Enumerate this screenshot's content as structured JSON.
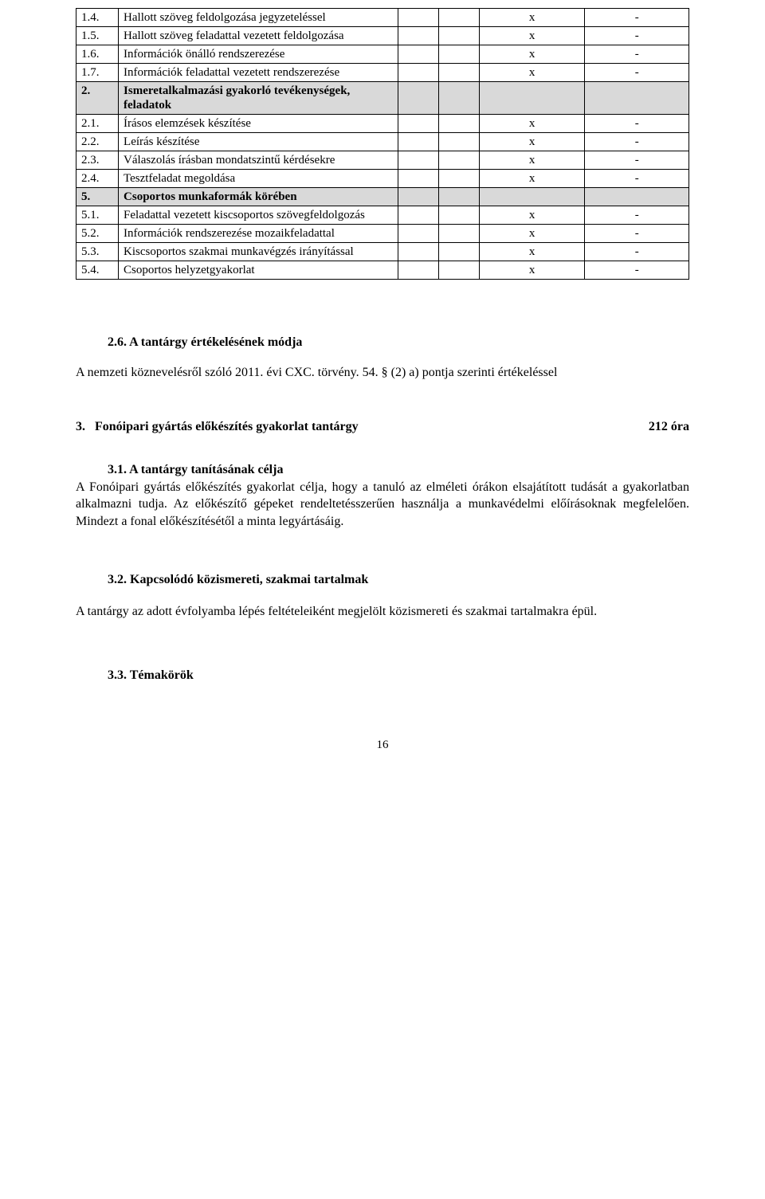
{
  "table": {
    "rows": [
      {
        "num": "1.4.",
        "desc": "Hallott szöveg feldolgozása jegyzeteléssel",
        "a": "",
        "b": "",
        "c": "x",
        "d": "-",
        "shaded": false,
        "bold": false
      },
      {
        "num": "1.5.",
        "desc": "Hallott szöveg feladattal vezetett feldolgozása",
        "a": "",
        "b": "",
        "c": "x",
        "d": "-",
        "shaded": false,
        "bold": false
      },
      {
        "num": "1.6.",
        "desc": "Információk önálló rendszerezése",
        "a": "",
        "b": "",
        "c": "x",
        "d": "-",
        "shaded": false,
        "bold": false
      },
      {
        "num": "1.7.",
        "desc": "Információk feladattal vezetett rendszerezése",
        "a": "",
        "b": "",
        "c": "x",
        "d": "-",
        "shaded": false,
        "bold": false
      },
      {
        "num": "2.",
        "desc": "Ismeretalkalmazási gyakorló tevékenységek, feladatok",
        "a": "",
        "b": "",
        "c": "",
        "d": "",
        "shaded": true,
        "bold": true
      },
      {
        "num": "2.1.",
        "desc": "Írásos elemzések készítése",
        "a": "",
        "b": "",
        "c": "x",
        "d": "-",
        "shaded": false,
        "bold": false
      },
      {
        "num": "2.2.",
        "desc": "Leírás készítése",
        "a": "",
        "b": "",
        "c": "x",
        "d": "-",
        "shaded": false,
        "bold": false
      },
      {
        "num": "2.3.",
        "desc": "Válaszolás írásban mondatszintű kérdésekre",
        "a": "",
        "b": "",
        "c": "x",
        "d": "-",
        "shaded": false,
        "bold": false
      },
      {
        "num": "2.4.",
        "desc": "Tesztfeladat megoldása",
        "a": "",
        "b": "",
        "c": "x",
        "d": "-",
        "shaded": false,
        "bold": false
      },
      {
        "num": "5.",
        "desc": "Csoportos munkaformák körében",
        "a": "",
        "b": "",
        "c": "",
        "d": "",
        "shaded": true,
        "bold": true
      },
      {
        "num": "5.1.",
        "desc": "Feladattal vezetett kiscsoportos szövegfeldolgozás",
        "a": "",
        "b": "",
        "c": "x",
        "d": "-",
        "shaded": false,
        "bold": false
      },
      {
        "num": "5.2.",
        "desc": "Információk rendszerezése mozaikfeladattal",
        "a": "",
        "b": "",
        "c": "x",
        "d": "-",
        "shaded": false,
        "bold": false
      },
      {
        "num": "5.3.",
        "desc": "Kiscsoportos szakmai munkavégzés irányítással",
        "a": "",
        "b": "",
        "c": "x",
        "d": "-",
        "shaded": false,
        "bold": false
      },
      {
        "num": "5.4.",
        "desc": "Csoportos helyzetgyakorlat",
        "a": "",
        "b": "",
        "c": "x",
        "d": "-",
        "shaded": false,
        "bold": false
      }
    ]
  },
  "section26": {
    "heading": "2.6. A tantárgy értékelésének módja",
    "text": "A nemzeti köznevelésről szóló 2011. évi CXC. törvény. 54. § (2) a) pontja szerinti értékeléssel"
  },
  "subject3": {
    "number": "3.",
    "title": "Fonóipari gyártás előkészítés gyakorlat tantárgy",
    "hours": "212 óra"
  },
  "section31": {
    "heading": "3.1. A tantárgy tanításának célja",
    "text": "A Fonóipari gyártás előkészítés gyakorlat célja, hogy a tanuló az elméleti órákon elsajátított tudását a gyakorlatban alkalmazni tudja. Az előkészítő gépeket rendeltetésszerűen használja a munkavédelmi előírásoknak megfelelően. Mindezt a fonal előkészítésétől  a minta legyártásáig."
  },
  "section32": {
    "heading": "3.2. Kapcsolódó közismereti, szakmai tartalmak",
    "text": "A tantárgy az adott évfolyamba lépés feltételeiként megjelölt közismereti és szakmai tartalmakra épül."
  },
  "section33": {
    "heading": "3.3. Témakörök"
  },
  "pageNumber": "16"
}
